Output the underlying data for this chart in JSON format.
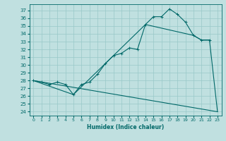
{
  "title": "",
  "xlabel": "Humidex (Indice chaleur)",
  "bg_color": "#c0e0e0",
  "grid_color": "#98c8c8",
  "line_color": "#006868",
  "xlim": [
    -0.5,
    23.5
  ],
  "ylim": [
    23.5,
    37.8
  ],
  "yticks": [
    24,
    25,
    26,
    27,
    28,
    29,
    30,
    31,
    32,
    33,
    34,
    35,
    36,
    37
  ],
  "xticks": [
    0,
    1,
    2,
    3,
    4,
    5,
    6,
    7,
    8,
    9,
    10,
    11,
    12,
    13,
    14,
    15,
    16,
    17,
    18,
    19,
    20,
    21,
    22,
    23
  ],
  "line1_x": [
    0,
    1,
    2,
    3,
    4,
    5,
    6,
    7,
    8,
    9,
    10,
    11,
    12,
    13,
    14,
    15,
    16,
    17,
    18,
    19,
    20,
    21,
    22
  ],
  "line1_y": [
    28.0,
    27.8,
    27.5,
    27.8,
    27.5,
    26.2,
    27.5,
    27.8,
    28.8,
    30.2,
    31.2,
    31.5,
    32.2,
    32.0,
    35.2,
    36.2,
    36.2,
    37.2,
    36.5,
    35.5,
    33.8,
    33.2,
    33.2
  ],
  "line2_x": [
    0,
    5,
    14,
    20,
    21,
    22,
    23
  ],
  "line2_y": [
    28.0,
    26.2,
    35.2,
    33.8,
    33.2,
    33.2,
    24.0
  ],
  "line3_x": [
    0,
    23
  ],
  "line3_y": [
    28.0,
    24.0
  ]
}
